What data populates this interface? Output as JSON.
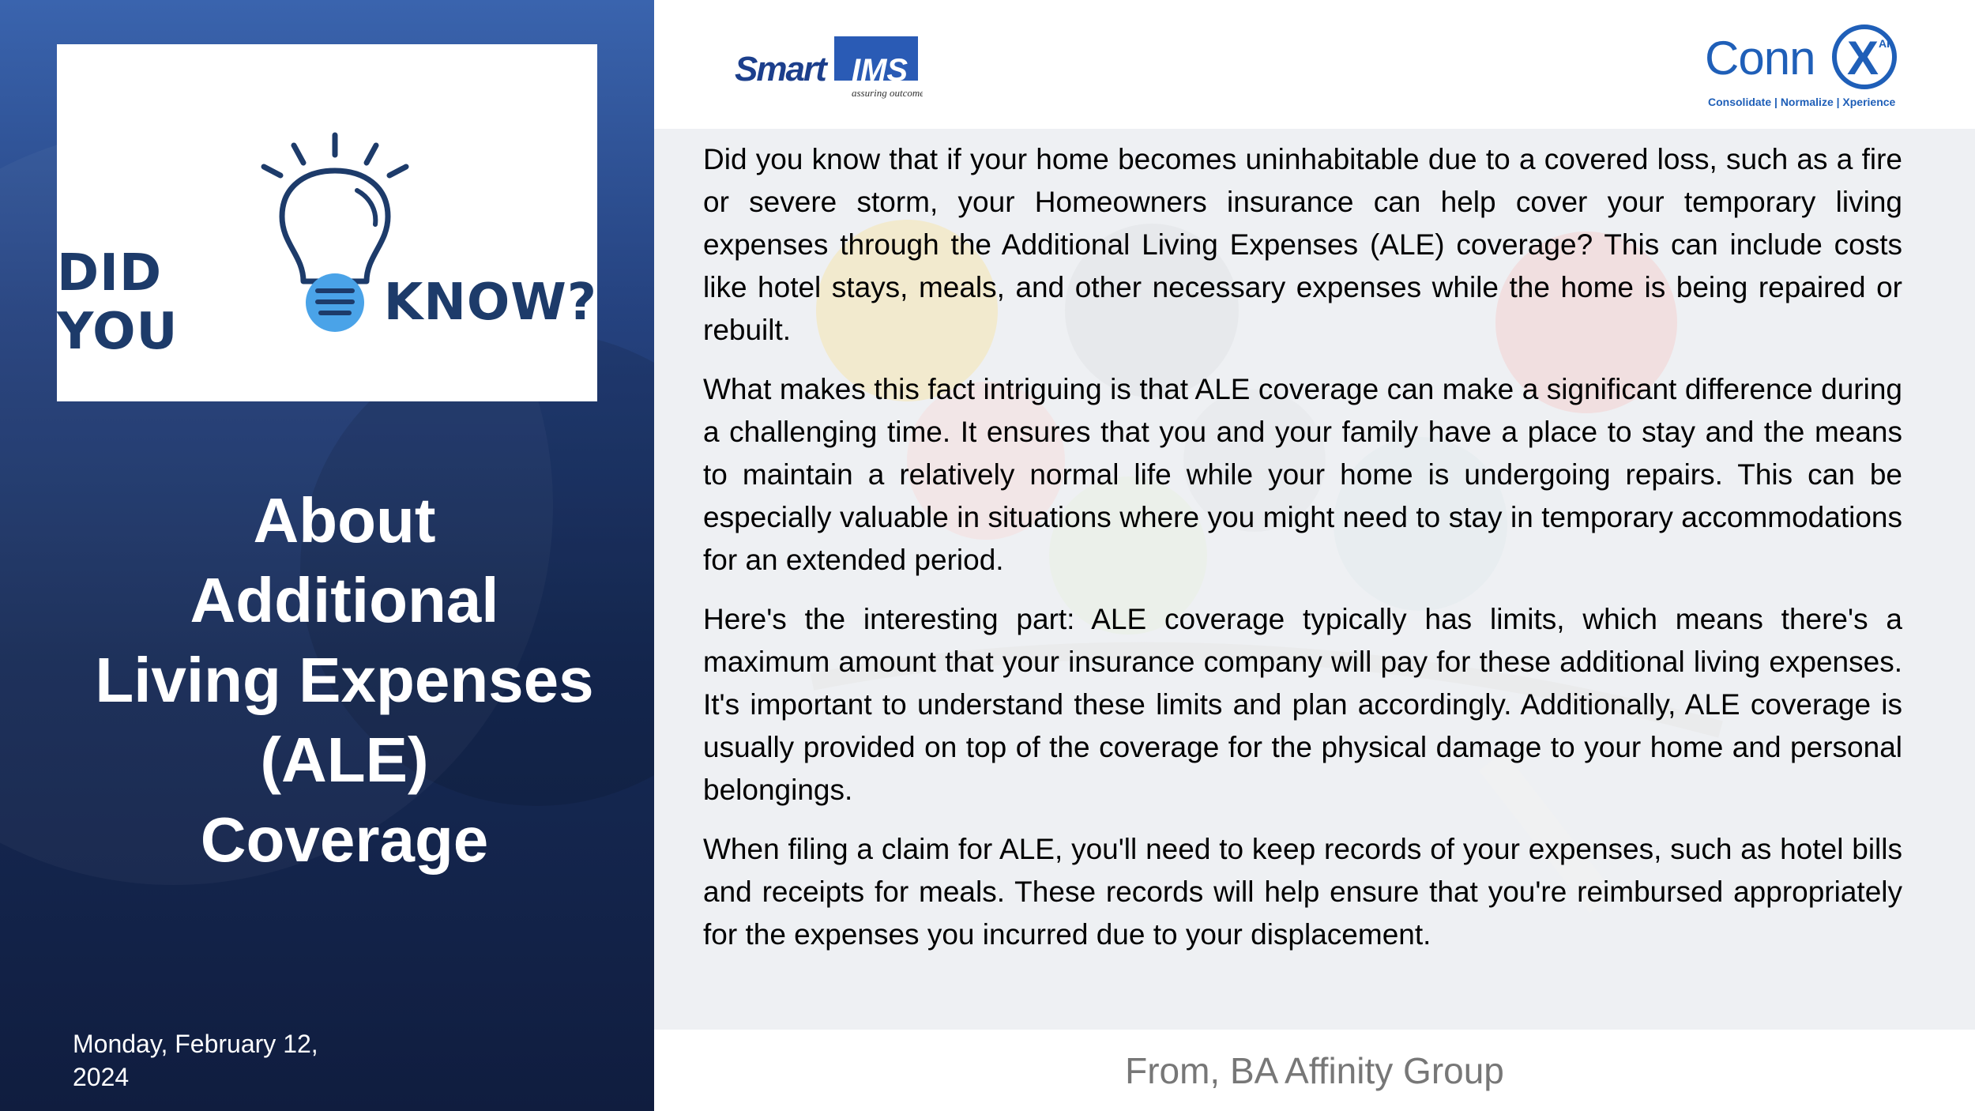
{
  "left": {
    "badge": {
      "word_left": "DID YOU",
      "word_right": "KNOW?"
    },
    "title_lines": [
      "About",
      "Additional",
      "Living Expenses",
      "(ALE)",
      "Coverage"
    ],
    "date_line1": "Monday, February 12,",
    "date_line2": "2024"
  },
  "right": {
    "logos": {
      "smart": {
        "name": "Smart",
        "suffix": "IMS",
        "tagline": "assuring outcomes"
      },
      "connx": {
        "name": "Conn",
        "mark": "X",
        "superscript": "AI",
        "tagline": "Consolidate | Normalize | Xperience"
      }
    },
    "paragraphs": [
      "Did you know that if your home becomes uninhabitable due to a covered loss, such as a fire or severe storm, your Homeowners insurance can help cover your temporary living expenses through the Additional Living Expenses (ALE) coverage? This can include costs like hotel stays, meals, and other necessary expenses while the home is being repaired or rebuilt.",
      "What makes this fact intriguing is that ALE coverage can make a significant difference during a challenging time. It ensures that you and your family have a place to stay and the means to maintain a relatively normal life while your home is undergoing repairs. This can be especially valuable in situations where you might need to stay in temporary accommodations for an extended period.",
      "Here's the interesting part: ALE coverage typically has limits, which means there's a maximum amount that your insurance company will pay for these additional living expenses. It's important to understand these limits and plan accordingly. Additionally, ALE coverage is usually provided on top of the coverage for the physical damage to your home and personal belongings.",
      "When filing a claim for ALE, you'll need to keep records of your expenses, such as hotel bills and receipts for meals. These records will help ensure that you're reimbursed appropriately for the expenses you incurred due to your displacement."
    ],
    "footer": "From, BA Affinity Group"
  },
  "colors": {
    "left_panel_top": "#3a64ae",
    "left_panel_bottom": "#101d3f",
    "badge_text": "#1d3b6a",
    "badge_accent": "#4aa3e8",
    "connx_blue": "#1f5fb8",
    "smart_navy": "#1c3f8c",
    "footer_text": "#777777"
  }
}
